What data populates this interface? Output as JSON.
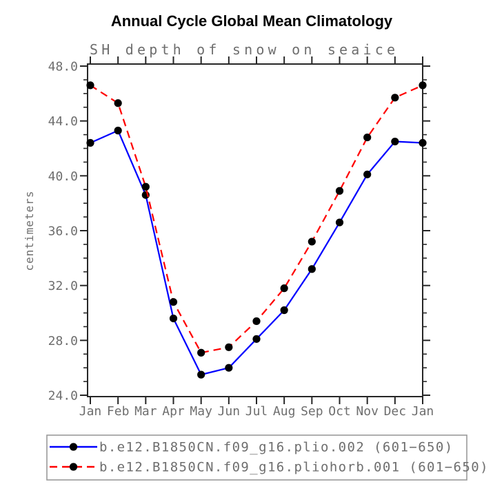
{
  "chart_data": {
    "type": "line",
    "title": "Annual Cycle Global Mean Climatology",
    "subtitle": "SH depth of snow on seaice",
    "ylabel": "centimeters",
    "xlabel": "",
    "x_categories": [
      "Jan",
      "Feb",
      "Mar",
      "Apr",
      "May",
      "Jun",
      "Jul",
      "Aug",
      "Sep",
      "Oct",
      "Nov",
      "Dec",
      "Jan"
    ],
    "ylim": [
      24.0,
      48.0
    ],
    "ytick_step": 4.0,
    "yminor_step": 1.0,
    "ytick_labels": [
      "24.0",
      "28.0",
      "32.0",
      "36.0",
      "40.0",
      "44.0",
      "48.0"
    ],
    "grid": false,
    "legend_position": "bottom",
    "series": [
      {
        "name": "b.e12.B1850CN.f09_g16.plio.002 (601−650)",
        "color": "#0000ff",
        "line_style": "solid",
        "marker": "filled-circle",
        "marker_color": "#000000",
        "values": [
          42.4,
          43.3,
          38.6,
          29.6,
          25.5,
          26.0,
          28.1,
          30.2,
          33.2,
          36.6,
          40.1,
          42.5,
          42.4
        ]
      },
      {
        "name": "b.e12.B1850CN.f09_g16.pliohorb.001 (601−650)",
        "color": "#ff0000",
        "line_style": "dashed",
        "marker": "filled-circle",
        "marker_color": "#000000",
        "values": [
          46.6,
          45.3,
          39.2,
          30.8,
          27.1,
          27.5,
          29.4,
          31.8,
          35.2,
          38.9,
          42.8,
          45.7,
          46.6
        ]
      }
    ]
  },
  "colors": {
    "background": "#ffffff",
    "title": "#000000",
    "gray_text": "#6e6e6e",
    "axis": "#262626",
    "legend_border": "#999999"
  }
}
